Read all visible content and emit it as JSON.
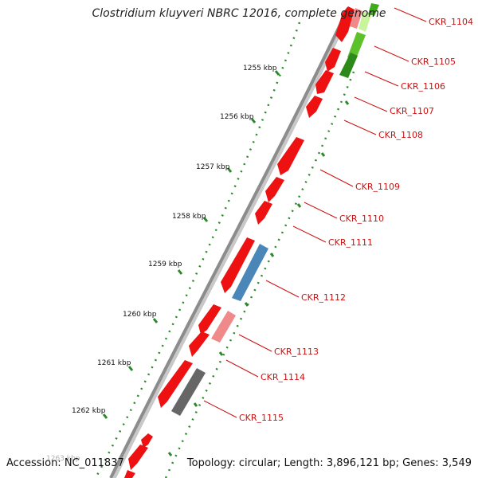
{
  "title": "Clostridium kluyveri NBRC 12016, complete genome",
  "footer": {
    "accession": "Accession: NC_011837",
    "summary": "Topology: circular; Length: 3,896,121 bp; Genes: 3,549"
  },
  "colors": {
    "backbone": "#8c8c8c",
    "gene_red": "#ee1111",
    "gene_pink": "#f08a8a",
    "gene_blue": "#4a86b8",
    "gene_green": "#3faa1a",
    "gene_gray": "#666666",
    "tick": "#2a8a2a",
    "label": "#cc1111"
  },
  "ticks": [
    {
      "label": "1255 kbp"
    },
    {
      "label": "1256 kbp"
    },
    {
      "label": "1257 kbp"
    },
    {
      "label": "1258 kbp"
    },
    {
      "label": "1259 kbp"
    },
    {
      "label": "1260 kbp"
    },
    {
      "label": "1261 kbp"
    },
    {
      "label": "1262 kbp"
    }
  ],
  "faded_tick_label": "1263 kbp",
  "genes": [
    {
      "label": "CKR_1104"
    },
    {
      "label": "CKR_1105"
    },
    {
      "label": "CKR_1106"
    },
    {
      "label": "CKR_1107"
    },
    {
      "label": "CKR_1108"
    },
    {
      "label": "CKR_1109"
    },
    {
      "label": "CKR_1110"
    },
    {
      "label": "CKR_1111"
    },
    {
      "label": "CKR_1112"
    },
    {
      "label": "CKR_1113"
    },
    {
      "label": "CKR_1114"
    },
    {
      "label": "CKR_1115"
    }
  ]
}
